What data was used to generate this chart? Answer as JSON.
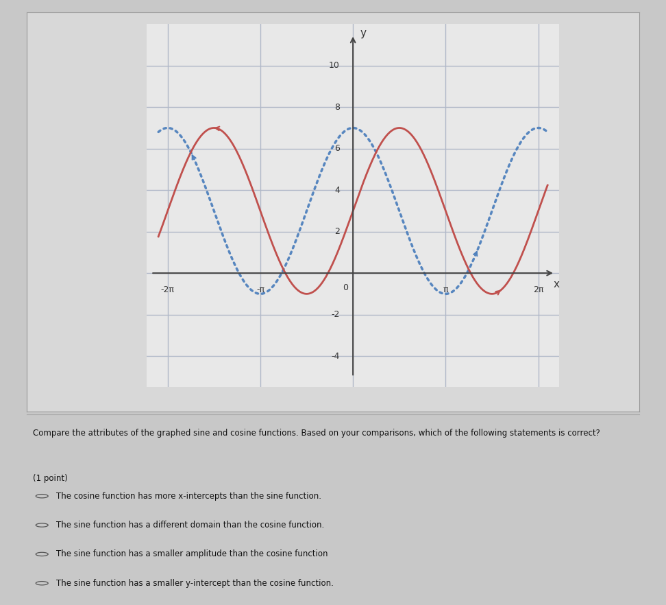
{
  "sine_color": "#c0504d",
  "cosine_color": "#4f81bd",
  "amplitude": 4,
  "vertical_shift": 3,
  "xlim": [
    -7.0,
    7.0
  ],
  "ylim": [
    -5.5,
    12
  ],
  "yticks": [
    -4,
    -2,
    0,
    2,
    4,
    6,
    8,
    10
  ],
  "xtick_positions": [
    -6.283185307,
    -3.141592654,
    0,
    3.141592654,
    6.283185307
  ],
  "xtick_labels": [
    "-2π",
    "-π",
    "0",
    "π",
    "2π"
  ],
  "xlabel": "x",
  "ylabel": "y",
  "outer_bg": "#c8c8c8",
  "chart_box_bg": "#d8d8d8",
  "plot_bg_color": "#e8e8e8",
  "grid_color": "#b0b8c8",
  "question_text": "Compare the attributes of the graphed sine and cosine functions. Based on your comparisons, which of the following statements is correct?",
  "point_label": "(1 point)",
  "options": [
    "The cosine function has more x-intercepts than the sine function.",
    "The sine function has a different domain than the cosine function.",
    "The sine function has a smaller amplitude than the cosine function",
    "The sine function has a smaller y-intercept than the cosine function."
  ]
}
